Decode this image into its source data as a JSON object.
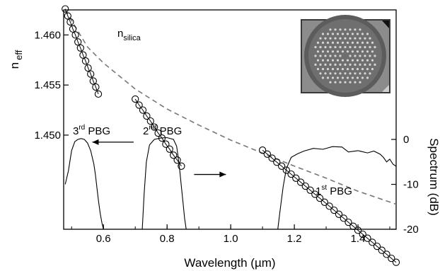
{
  "chart_data": {
    "type": "scatter",
    "x_axis": {
      "label": "Wavelength (µm)",
      "range": [
        0.475,
        1.52
      ],
      "ticks": [
        0.6,
        0.8,
        1.0,
        1.2,
        1.4
      ],
      "tick_labels": [
        "0.6",
        "0.8",
        "1.0",
        "1.2",
        "1.4"
      ]
    },
    "y_axis_left": {
      "label_main": "n",
      "label_sub": "eff",
      "range": [
        1.4406,
        1.4625
      ],
      "ticks": [
        1.45,
        1.455,
        1.46
      ],
      "tick_labels": [
        "1.450",
        "1.455",
        "1.460"
      ]
    },
    "y_axis_right": {
      "label": "Spectrum (dB)",
      "range": [
        -20,
        3
      ],
      "ticks": [
        -20,
        -10,
        0
      ],
      "tick_labels": [
        "-20",
        "-10",
        "0"
      ]
    },
    "n_silica_label": {
      "main": "n",
      "sub": "silica"
    },
    "series": [
      {
        "name": "n_silica",
        "style": "dashed",
        "color": "#777777",
        "x": [
          0.48,
          0.55,
          0.6,
          0.7,
          0.8,
          0.9,
          1.0,
          1.1,
          1.2,
          1.3,
          1.4,
          1.52
        ],
        "y": [
          1.4625,
          1.4588,
          1.4572,
          1.4546,
          1.4526,
          1.451,
          1.4495,
          1.4482,
          1.4469,
          1.4457,
          1.4444,
          1.4431
        ]
      },
      {
        "name": "n_eff band 3",
        "style": "circles",
        "x": [
          0.48,
          0.488,
          0.496,
          0.504,
          0.512,
          0.52,
          0.528,
          0.536,
          0.544,
          0.552,
          0.56,
          0.568,
          0.576,
          0.584
        ],
        "y": [
          1.4626,
          1.4619,
          1.4613,
          1.4606,
          1.46,
          1.4593,
          1.4587,
          1.458,
          1.4574,
          1.4567,
          1.4561,
          1.4554,
          1.4548,
          1.4541
        ]
      },
      {
        "name": "n_eff band 2",
        "style": "circles",
        "x": [
          0.7,
          0.712,
          0.724,
          0.736,
          0.748,
          0.76,
          0.772,
          0.784,
          0.796,
          0.808,
          0.82,
          0.832,
          0.845
        ],
        "y": [
          1.4536,
          1.453,
          1.4525,
          1.4519,
          1.4514,
          1.4508,
          1.4502,
          1.4497,
          1.4491,
          1.4486,
          1.448,
          1.4475,
          1.4469
        ]
      },
      {
        "name": "n_eff band 1",
        "style": "circles",
        "x": [
          1.1,
          1.115,
          1.13,
          1.145,
          1.16,
          1.175,
          1.19,
          1.205,
          1.22,
          1.235,
          1.25,
          1.265,
          1.28,
          1.295,
          1.31,
          1.325,
          1.34,
          1.355,
          1.37,
          1.385,
          1.4,
          1.415,
          1.43,
          1.445,
          1.46,
          1.475,
          1.49,
          1.505,
          1.52
        ],
        "y": [
          1.4485,
          1.4481,
          1.4477,
          1.4473,
          1.4469,
          1.4465,
          1.4461,
          1.4457,
          1.4453,
          1.4449,
          1.4445,
          1.4441,
          1.4437,
          1.4433,
          1.4429,
          1.4425,
          1.4421,
          1.4417,
          1.4413,
          1.4409,
          1.4405,
          1.4401,
          1.4397,
          1.4393,
          1.4389,
          1.4385,
          1.4381,
          1.4377,
          1.4373
        ]
      }
    ],
    "spectrum_series": [
      {
        "name": "3rd PBG",
        "x": [
          0.48,
          0.49,
          0.5,
          0.51,
          0.52,
          0.53,
          0.54,
          0.55,
          0.56,
          0.57,
          0.575,
          0.58,
          0.585,
          0.59,
          0.595,
          0.6
        ],
        "y": [
          -10.0,
          -7.0,
          -2.5,
          -0.5,
          0.0,
          0.2,
          0.0,
          -0.8,
          -2.5,
          -5.5,
          -8.0,
          -11.0,
          -14.0,
          -16.5,
          -18.5,
          -20.0
        ]
      },
      {
        "name": "2nd PBG",
        "x": [
          0.722,
          0.728,
          0.735,
          0.745,
          0.76,
          0.78,
          0.8,
          0.82,
          0.83,
          0.835,
          0.84,
          0.845,
          0.85,
          0.855,
          0.86
        ],
        "y": [
          -20.0,
          -12.0,
          -5.0,
          -1.2,
          0.0,
          0.3,
          0.4,
          0.0,
          -1.5,
          -4.0,
          -7.0,
          -10.5,
          -14.0,
          -17.5,
          -20.0
        ]
      },
      {
        "name": "1st PBG",
        "x": [
          1.148,
          1.155,
          1.165,
          1.175,
          1.19,
          1.21,
          1.23,
          1.26,
          1.29,
          1.32,
          1.35,
          1.37,
          1.4,
          1.43,
          1.45,
          1.47,
          1.48,
          1.49,
          1.5,
          1.51,
          1.52
        ],
        "y": [
          -20.0,
          -16.0,
          -10.5,
          -6.5,
          -4.0,
          -3.2,
          -2.6,
          -2.0,
          -2.2,
          -1.6,
          -1.7,
          -2.8,
          -2.5,
          -3.0,
          -2.6,
          -3.3,
          -4.0,
          -5.0,
          -4.4,
          -5.5,
          -6.0
        ]
      }
    ],
    "annotations": [
      {
        "text": "3",
        "sup": "rd",
        "tail": " PBG"
      },
      {
        "text": "2",
        "sup": "nd",
        "tail": " PBG"
      },
      {
        "text": "1",
        "sup": "st",
        "tail": " PBG"
      }
    ],
    "arrows": [
      {
        "name": "arrow-left",
        "x": [
          0.695,
          0.565
        ],
        "y_left": 1.4493
      },
      {
        "name": "arrow-right",
        "x": [
          0.885,
          0.985
        ],
        "y_right": -7.8
      }
    ],
    "inset": "fiber cross-section micrograph",
    "grid": false
  }
}
